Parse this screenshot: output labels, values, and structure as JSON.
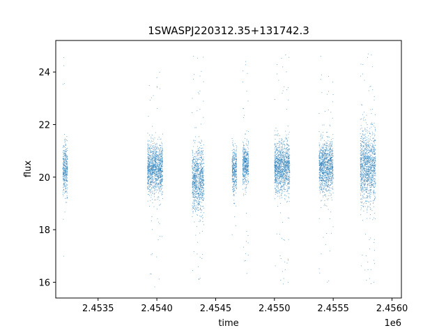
{
  "chart_data": {
    "type": "scatter",
    "title": "1SWASPJ220312.35+131742.3",
    "xlabel": "time",
    "ylabel": "flux",
    "x_offset_label": "1e6",
    "xlim": [
      2453140,
      2456080
    ],
    "ylim": [
      15.4,
      25.2
    ],
    "x_ticks": [
      2453500,
      2454000,
      2454500,
      2455000,
      2455500,
      2456000
    ],
    "x_tick_labels": [
      "2.4535",
      "2.4540",
      "2.4545",
      "2.4550",
      "2.4555",
      "2.4560"
    ],
    "y_ticks": [
      16,
      18,
      20,
      22,
      24
    ],
    "y_tick_labels": [
      "16",
      "18",
      "20",
      "22",
      "24"
    ],
    "grid": false,
    "point_color": "#1f77b4",
    "observing_seasons": [
      {
        "x_range": [
          2453200,
          2453240
        ],
        "center": 20.3,
        "spread": 0.8,
        "y_min": 16.7,
        "y_max": 24.8
      },
      {
        "x_range": [
          2453920,
          2454050
        ],
        "center": 20.3,
        "spread": 0.8,
        "y_min": 15.8,
        "y_max": 24.2
      },
      {
        "x_range": [
          2454300,
          2454400
        ],
        "center": 19.9,
        "spread": 1.0,
        "y_min": 16.0,
        "y_max": 24.8
      },
      {
        "x_range": [
          2454640,
          2454680
        ],
        "center": 20.3,
        "spread": 0.7,
        "y_min": 17.5,
        "y_max": 22.0
      },
      {
        "x_range": [
          2454730,
          2454780
        ],
        "center": 20.5,
        "spread": 0.7,
        "y_min": 16.2,
        "y_max": 24.5
      },
      {
        "x_range": [
          2455000,
          2455130
        ],
        "center": 20.4,
        "spread": 0.8,
        "y_min": 15.8,
        "y_max": 24.8
      },
      {
        "x_range": [
          2455380,
          2455500
        ],
        "center": 20.4,
        "spread": 0.8,
        "y_min": 15.9,
        "y_max": 24.8
      },
      {
        "x_range": [
          2455730,
          2455860
        ],
        "center": 20.4,
        "spread": 1.2,
        "y_min": 15.8,
        "y_max": 24.8
      }
    ]
  }
}
